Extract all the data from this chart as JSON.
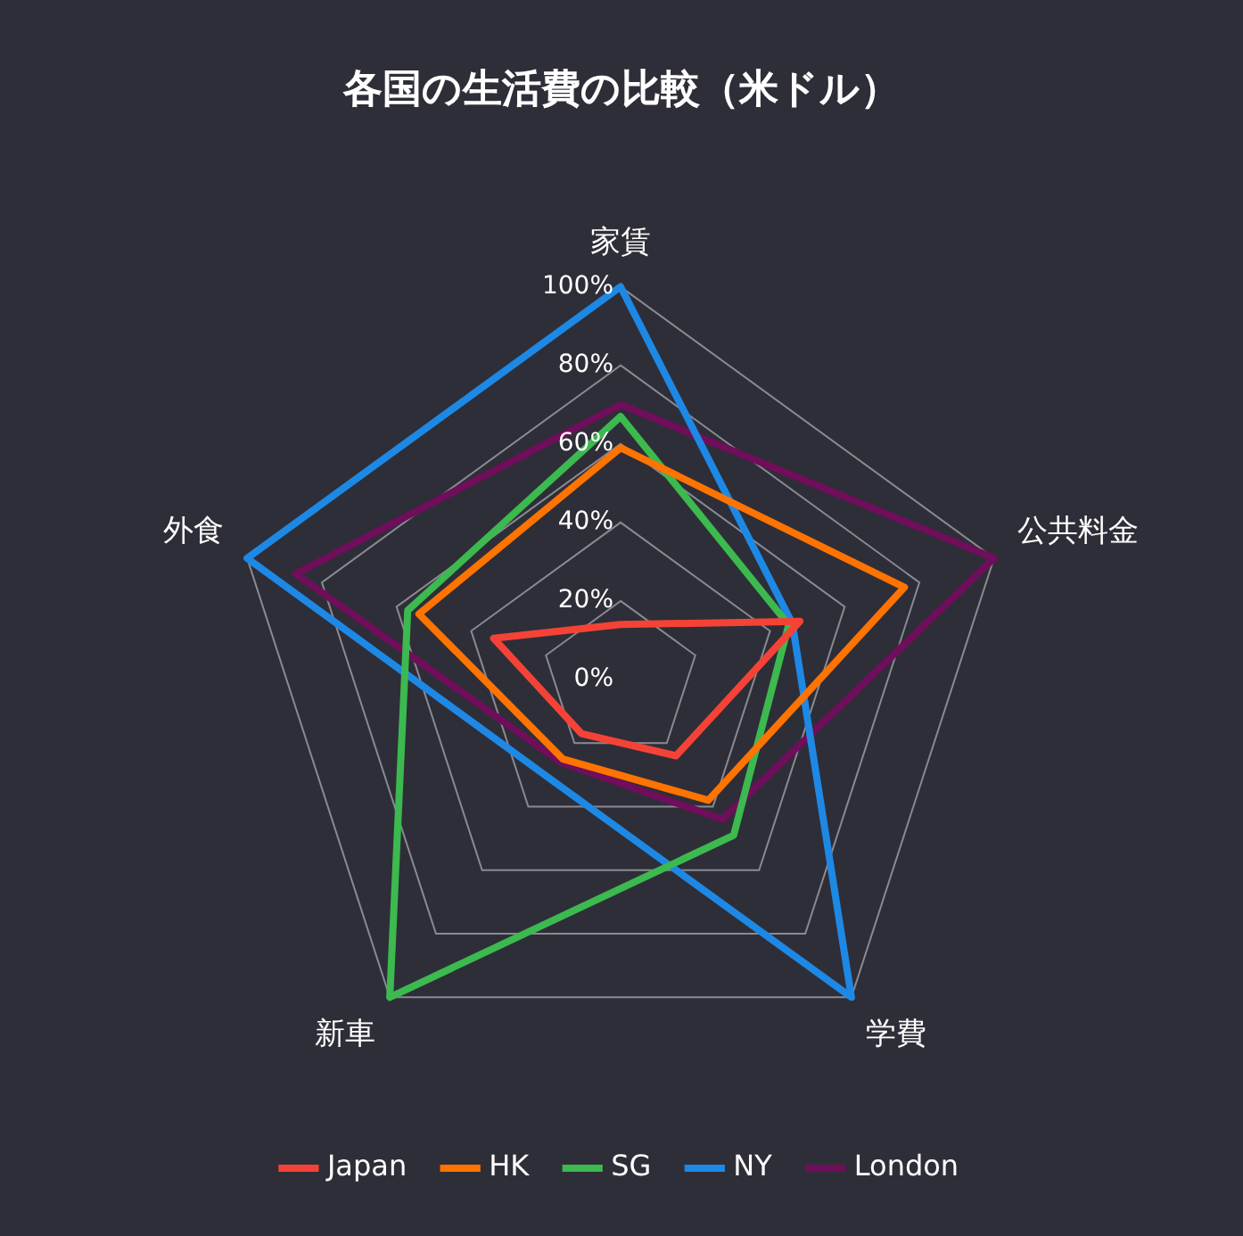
{
  "chart_data": {
    "type": "radar",
    "title": "各国の生活費の比較（米ドル）",
    "categories": [
      "家賃",
      "公共料金",
      "学費",
      "新車",
      "外食"
    ],
    "series": [
      {
        "name": "Japan",
        "color": "#f44336",
        "values": [
          14,
          48,
          24,
          17,
          34
        ]
      },
      {
        "name": "HK",
        "color": "#ff7300",
        "values": [
          59,
          76,
          38,
          25,
          54
        ]
      },
      {
        "name": "SG",
        "color": "#3cb94f",
        "values": [
          67,
          45,
          49,
          100,
          57
        ]
      },
      {
        "name": "NY",
        "color": "#1e88e5",
        "values": [
          100,
          46,
          100,
          31,
          100
        ]
      },
      {
        "name": "London",
        "color": "#6f0e5a",
        "values": [
          70,
          100,
          44,
          26,
          87
        ]
      }
    ],
    "ylim": [
      0,
      100
    ],
    "yticks": [
      {
        "value": 0,
        "label": "0%"
      },
      {
        "value": 20,
        "label": "20%"
      },
      {
        "value": 40,
        "label": "40%"
      },
      {
        "value": 60,
        "label": "60%"
      },
      {
        "value": 80,
        "label": "80%"
      },
      {
        "value": 100,
        "label": "100%"
      }
    ],
    "grid": true,
    "legend": "bottom",
    "marker": "none",
    "line_style": "solid"
  }
}
